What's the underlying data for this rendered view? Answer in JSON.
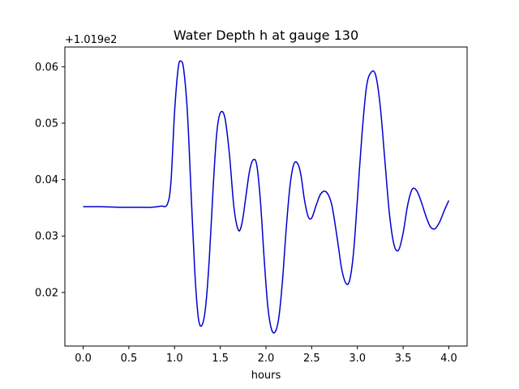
{
  "chart_data": {
    "type": "line",
    "title": "Water Depth h at gauge 130",
    "xlabel": "hours",
    "ylabel": "",
    "y_offset_label": "+1.019e2",
    "xlim": [
      -0.2,
      4.2
    ],
    "ylim": [
      0.0105,
      0.0635
    ],
    "x_ticks": [
      0.0,
      0.5,
      1.0,
      1.5,
      2.0,
      2.5,
      3.0,
      3.5,
      4.0
    ],
    "x_tick_labels": [
      "0.0",
      "0.5",
      "1.0",
      "1.5",
      "2.0",
      "2.5",
      "3.0",
      "3.5",
      "4.0"
    ],
    "y_ticks": [
      0.02,
      0.03,
      0.04,
      0.05,
      0.06
    ],
    "y_tick_labels": [
      "0.02",
      "0.03",
      "0.04",
      "0.05",
      "0.06"
    ],
    "grid": false,
    "series": [
      {
        "color": "#0000cc",
        "x": [
          0.0,
          0.2,
          0.4,
          0.6,
          0.75,
          0.85,
          0.92,
          0.96,
          1.0,
          1.04,
          1.07,
          1.1,
          1.14,
          1.18,
          1.22,
          1.26,
          1.3,
          1.34,
          1.38,
          1.42,
          1.46,
          1.5,
          1.55,
          1.6,
          1.65,
          1.7,
          1.74,
          1.78,
          1.82,
          1.86,
          1.9,
          1.94,
          1.98,
          2.02,
          2.06,
          2.1,
          2.14,
          2.18,
          2.22,
          2.26,
          2.3,
          2.34,
          2.38,
          2.42,
          2.46,
          2.5,
          2.55,
          2.6,
          2.66,
          2.72,
          2.78,
          2.83,
          2.88,
          2.92,
          2.96,
          3.0,
          3.05,
          3.1,
          3.15,
          3.2,
          3.25,
          3.3,
          3.35,
          3.4,
          3.45,
          3.5,
          3.55,
          3.6,
          3.65,
          3.7,
          3.75,
          3.8,
          3.85,
          3.9,
          3.95,
          4.0
        ],
        "y": [
          0.0352,
          0.0352,
          0.0351,
          0.0351,
          0.0351,
          0.0353,
          0.0356,
          0.0395,
          0.052,
          0.0598,
          0.061,
          0.0595,
          0.052,
          0.038,
          0.024,
          0.0155,
          0.0142,
          0.0175,
          0.026,
          0.038,
          0.048,
          0.0518,
          0.051,
          0.0445,
          0.035,
          0.031,
          0.0325,
          0.037,
          0.0415,
          0.0435,
          0.0425,
          0.036,
          0.026,
          0.0175,
          0.0135,
          0.013,
          0.0155,
          0.022,
          0.031,
          0.0385,
          0.0425,
          0.043,
          0.041,
          0.0365,
          0.0335,
          0.0332,
          0.0355,
          0.0375,
          0.0378,
          0.0355,
          0.0295,
          0.024,
          0.0215,
          0.0225,
          0.0275,
          0.0365,
          0.048,
          0.0565,
          0.059,
          0.0585,
          0.053,
          0.0435,
          0.034,
          0.0285,
          0.0275,
          0.0305,
          0.0355,
          0.0383,
          0.038,
          0.036,
          0.0335,
          0.0316,
          0.0313,
          0.0325,
          0.0345,
          0.0363
        ]
      }
    ]
  }
}
